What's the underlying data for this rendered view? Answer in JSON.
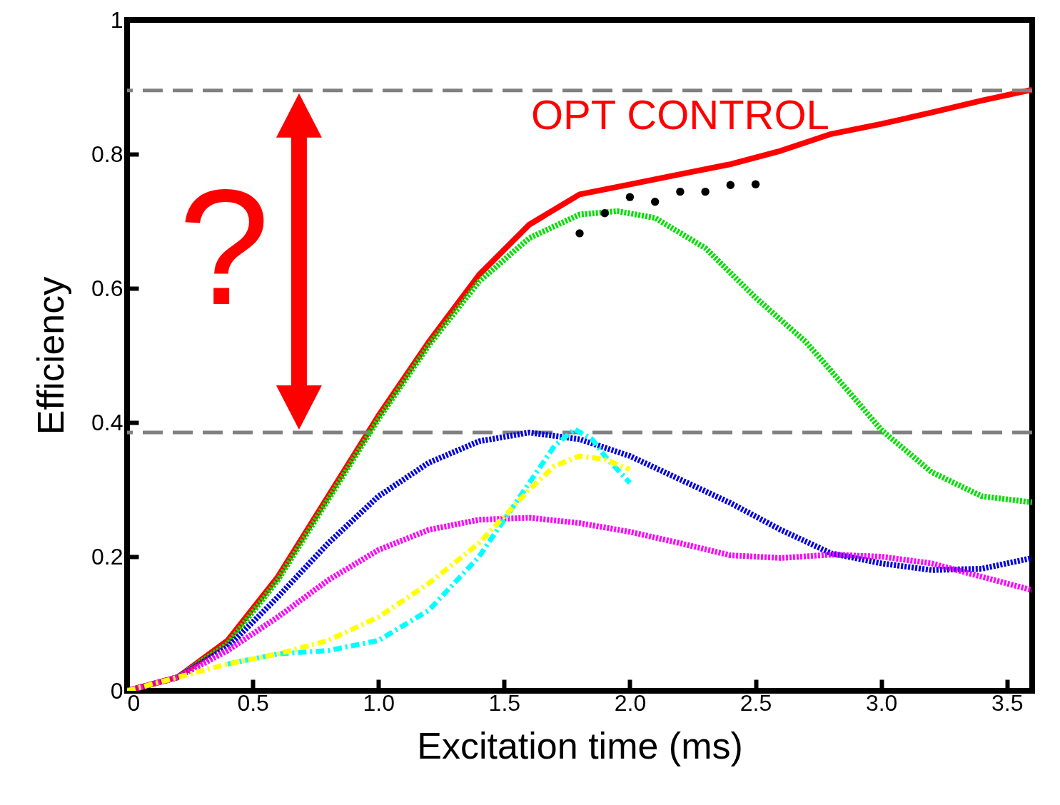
{
  "chart_data": {
    "type": "line",
    "xlabel": "Excitation time (ms)",
    "ylabel": "Efficiency",
    "xlim": [
      0,
      3.6
    ],
    "xticks": [
      0,
      0.5,
      {
        "value": 1,
        "label": "1.0"
      },
      1.5,
      {
        "value": 2,
        "label": "2.0"
      },
      2.5,
      {
        "value": 3,
        "label": "3.0"
      },
      3.5
    ],
    "ylim": [
      0,
      1
    ],
    "yticks": [
      0,
      0.2,
      0.4,
      0.6,
      0.8,
      1
    ],
    "grid": false,
    "series": [
      {
        "name": "OPT CONTROL",
        "color": "#ff0000",
        "line_style": "solid",
        "x": [
          0,
          0.2,
          0.4,
          0.6,
          0.8,
          1.0,
          1.2,
          1.4,
          1.6,
          1.8,
          2.0,
          2.2,
          2.4,
          2.6,
          2.8,
          3.0,
          3.2,
          3.4,
          3.6
        ],
        "values": [
          0,
          0.02,
          0.075,
          0.17,
          0.29,
          0.41,
          0.52,
          0.62,
          0.695,
          0.74,
          0.755,
          0.77,
          0.785,
          0.805,
          0.83,
          0.845,
          0.862,
          0.88,
          0.896
        ]
      },
      {
        "color": "#00e000",
        "line_style": "dotted",
        "x": [
          0,
          0.2,
          0.4,
          0.6,
          0.8,
          1.0,
          1.2,
          1.4,
          1.6,
          1.8,
          1.95,
          2.1,
          2.3,
          2.5,
          2.7,
          2.8,
          3.0,
          3.2,
          3.4,
          3.6
        ],
        "values": [
          0,
          0.02,
          0.07,
          0.165,
          0.285,
          0.405,
          0.515,
          0.61,
          0.675,
          0.71,
          0.715,
          0.705,
          0.66,
          0.586,
          0.52,
          0.477,
          0.389,
          0.326,
          0.29,
          0.281
        ]
      },
      {
        "color": "#0000e0",
        "line_style": "dotted",
        "x": [
          0,
          0.2,
          0.4,
          0.6,
          0.8,
          1.0,
          1.2,
          1.4,
          1.6,
          1.8,
          2.0,
          2.2,
          2.4,
          2.6,
          2.8,
          3.0,
          3.2,
          3.4,
          3.6
        ],
        "values": [
          0,
          0.02,
          0.065,
          0.14,
          0.22,
          0.29,
          0.34,
          0.372,
          0.385,
          0.375,
          0.35,
          0.315,
          0.28,
          0.24,
          0.205,
          0.19,
          0.18,
          0.182,
          0.198
        ]
      },
      {
        "color": "#ff00ff",
        "line_style": "dotted",
        "x": [
          0,
          0.2,
          0.4,
          0.6,
          0.8,
          1.0,
          1.2,
          1.4,
          1.6,
          1.8,
          2.0,
          2.2,
          2.4,
          2.6,
          2.8,
          3.0,
          3.2,
          3.4,
          3.6
        ],
        "values": [
          0,
          0.02,
          0.06,
          0.11,
          0.165,
          0.21,
          0.24,
          0.255,
          0.258,
          0.25,
          0.237,
          0.22,
          0.202,
          0.198,
          0.203,
          0.2,
          0.19,
          0.17,
          0.15
        ]
      },
      {
        "color": "#00ffff",
        "line_style": "dashed",
        "x": [
          0.4,
          0.6,
          0.8,
          1.0,
          1.2,
          1.4,
          1.5,
          1.6,
          1.7,
          1.78,
          1.85,
          1.9,
          2.0
        ],
        "values": [
          0.04,
          0.055,
          0.06,
          0.075,
          0.12,
          0.2,
          0.255,
          0.31,
          0.365,
          0.39,
          0.375,
          0.35,
          0.31
        ]
      },
      {
        "color": "#ffff00",
        "line_style": "dashed",
        "x": [
          0,
          0.2,
          0.4,
          0.6,
          0.8,
          1.0,
          1.2,
          1.4,
          1.6,
          1.7,
          1.8,
          1.9,
          2.0
        ],
        "values": [
          0,
          0.02,
          0.04,
          0.055,
          0.075,
          0.11,
          0.16,
          0.22,
          0.3,
          0.335,
          0.35,
          0.345,
          0.33
        ]
      },
      {
        "type": "scatter",
        "color": "#000000",
        "x": [
          1.8,
          1.9,
          2.0,
          2.1,
          2.2,
          2.3,
          2.4,
          2.5
        ],
        "values": [
          0.682,
          0.712,
          0.736,
          0.729,
          0.744,
          0.744,
          0.754,
          0.755
        ]
      }
    ],
    "ref_lines": [
      {
        "axis": "y",
        "value": 0.895,
        "color": "#808080",
        "line_style": "dashed"
      },
      {
        "axis": "y",
        "value": 0.385,
        "color": "#808080",
        "line_style": "dashed"
      }
    ],
    "annotations": [
      "?"
    ]
  }
}
